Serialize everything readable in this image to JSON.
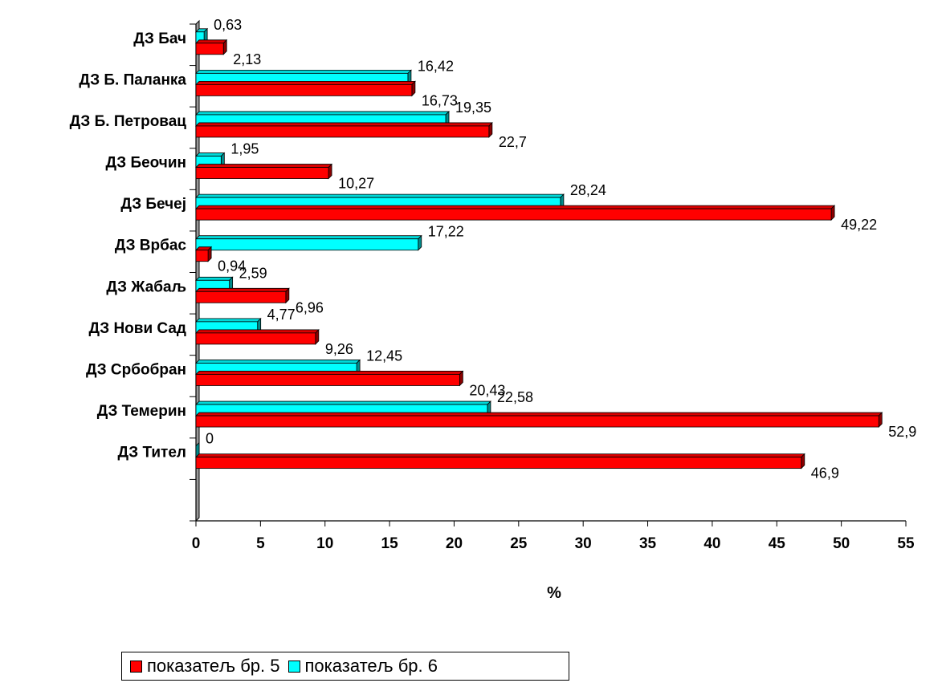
{
  "chart_data": {
    "type": "bar",
    "orientation": "horizontal",
    "categories": [
      "ДЗ Бач",
      "ДЗ Б. Паланка",
      "ДЗ Б. Петровац",
      "ДЗ Беочин",
      "ДЗ Бечеј",
      "ДЗ Врбас",
      "ДЗ Жабаљ",
      "ДЗ Нови Сад",
      "ДЗ Србобран",
      "ДЗ Темерин",
      "ДЗ Тител"
    ],
    "series": [
      {
        "name": "показатељ бр. 5",
        "color": "#ff0000",
        "values": [
          2.13,
          16.73,
          22.7,
          10.27,
          49.22,
          0.94,
          6.96,
          9.26,
          20.43,
          52.9,
          46.9
        ],
        "labels": [
          "2,13",
          "16,73",
          "22,7",
          "10,27",
          "49,22",
          "0,94",
          "6,96",
          "9,26",
          "20,43",
          "52,9",
          "46,9"
        ]
      },
      {
        "name": "показатељ бр. 6",
        "color": "#00ffff",
        "values": [
          0.63,
          16.42,
          19.35,
          1.95,
          28.24,
          17.22,
          2.59,
          4.77,
          12.45,
          22.58,
          0
        ],
        "labels": [
          "0,63",
          "16,42",
          "19,35",
          "1,95",
          "28,24",
          "17,22",
          "2,59",
          "4,77",
          "12,45",
          "22,58",
          "0"
        ]
      }
    ],
    "xlim": [
      0,
      55
    ],
    "xticks": [
      "0",
      "5",
      "10",
      "15",
      "20",
      "25",
      "30",
      "35",
      "40",
      "45",
      "50",
      "55"
    ],
    "xlabel": "%",
    "grid": false,
    "legend": "bottom-left"
  }
}
